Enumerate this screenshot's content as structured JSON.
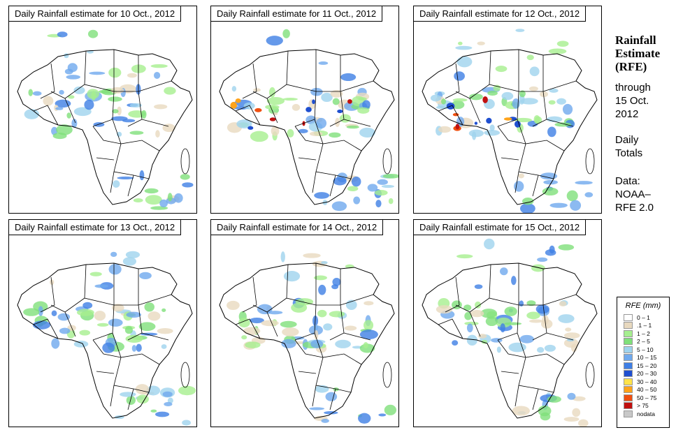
{
  "panels": [
    {
      "title": "Daily Rainfall estimate for  10 Oct., 2012"
    },
    {
      "title": "Daily Rainfall estimate for  11 Oct., 2012"
    },
    {
      "title": "Daily Rainfall estimate for  12 Oct., 2012"
    },
    {
      "title": "Daily Rainfall estimate for  13 Oct., 2012"
    },
    {
      "title": "Daily Rainfall estimate for  14 Oct., 2012"
    },
    {
      "title": "Daily Rainfall estimate for  15 Oct., 2012"
    }
  ],
  "side": {
    "title_line1": "Rainfall",
    "title_line2": "Estimate",
    "title_line3": "(RFE)",
    "through": "through",
    "date_line1": "15 Oct.",
    "date_line2": "2012",
    "daily_line1": "Daily",
    "daily_line2": "Totals",
    "data_line1": "Data:",
    "data_line2": "NOAA–",
    "data_line3": "RFE 2.0"
  },
  "legend": {
    "title": "RFE (mm)",
    "items": [
      {
        "label": "0 – 1",
        "color": "#ffffff"
      },
      {
        "label": ".1 – 1",
        "color": "#e8d9bf"
      },
      {
        "label": "1 – 2",
        "color": "#a6ef8f"
      },
      {
        "label": "2 – 5",
        "color": "#7fe07a"
      },
      {
        "label": "5 – 10",
        "color": "#9fd3ee"
      },
      {
        "label": "10 – 15",
        "color": "#6fa9ee"
      },
      {
        "label": "15 – 20",
        "color": "#3f7fe5"
      },
      {
        "label": "20 – 30",
        "color": "#1f4fd0"
      },
      {
        "label": "30 – 40",
        "color": "#ffe34a"
      },
      {
        "label": "40 – 50",
        "color": "#ffa31a"
      },
      {
        "label": "50 – 75",
        "color": "#ef4f10"
      },
      {
        "label": "> 75",
        "color": "#c01010"
      },
      {
        "label": "nodata",
        "color": "#c8c8c8"
      }
    ]
  }
}
